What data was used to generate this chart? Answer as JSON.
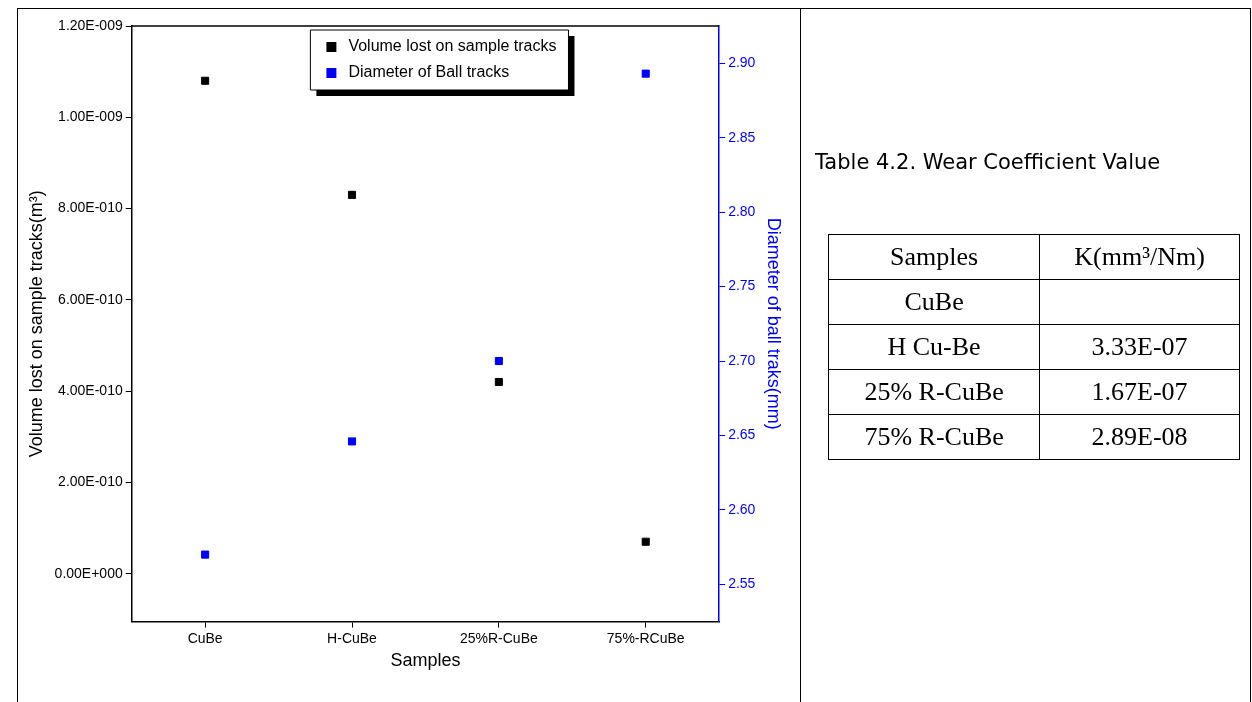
{
  "chart_data": [
    {
      "type": "scatter",
      "categories": [
        "CuBe",
        "H-CuBe",
        "25%R-CuBe",
        "75%-RCuBe"
      ],
      "xlabel": "Samples",
      "ylabel": "Volume lost on sample tracks(m³)",
      "y2label": "Diameter of ball traks(mm)",
      "ylim": [
        -1.05e-10,
        1.2e-09
      ],
      "yticks": [
        {
          "value": 0,
          "label": "0.00E+000"
        },
        {
          "value": 2e-10,
          "label": "2.00E-010"
        },
        {
          "value": 4e-10,
          "label": "4.00E-010"
        },
        {
          "value": 6e-10,
          "label": "6.00E-010"
        },
        {
          "value": 8e-10,
          "label": "8.00E-010"
        },
        {
          "value": 1e-09,
          "label": "1.00E-009"
        },
        {
          "value": 1.2e-09,
          "label": "1.20E-009"
        }
      ],
      "y2lim": [
        2.525,
        2.925
      ],
      "y2ticks": [
        {
          "value": 2.55,
          "label": "2.55"
        },
        {
          "value": 2.6,
          "label": "2.60"
        },
        {
          "value": 2.65,
          "label": "2.65"
        },
        {
          "value": 2.7,
          "label": "2.70"
        },
        {
          "value": 2.75,
          "label": "2.75"
        },
        {
          "value": 2.8,
          "label": "2.80"
        },
        {
          "value": 2.85,
          "label": "2.85"
        },
        {
          "value": 2.9,
          "label": "2.90"
        }
      ],
      "marker": "square",
      "legend": "top",
      "series": [
        {
          "name": "Volume lost on sample tracks",
          "color": "#000000",
          "values": [
            1.08e-09,
            8.3e-10,
            4.2e-10,
            7e-11
          ]
        },
        {
          "name": "Diameter of Ball tracks",
          "color": "#0000ff",
          "axis": "y2",
          "values": [
            2.57,
            2.646,
            2.7,
            2.893
          ]
        }
      ]
    },
    {
      "type": "other",
      "title": "Table 4.2. Wear Coefficient Value",
      "xlabel": "Samples",
      "ylabel": "K(mm³/Nm)",
      "categories": [
        "CuBe",
        "H Cu-Be",
        "25% R-CuBe",
        "75% R-CuBe"
      ],
      "value_labels": [
        null,
        "3.33E-07",
        "1.67E-07",
        "2.89E-08"
      ]
    }
  ]
}
